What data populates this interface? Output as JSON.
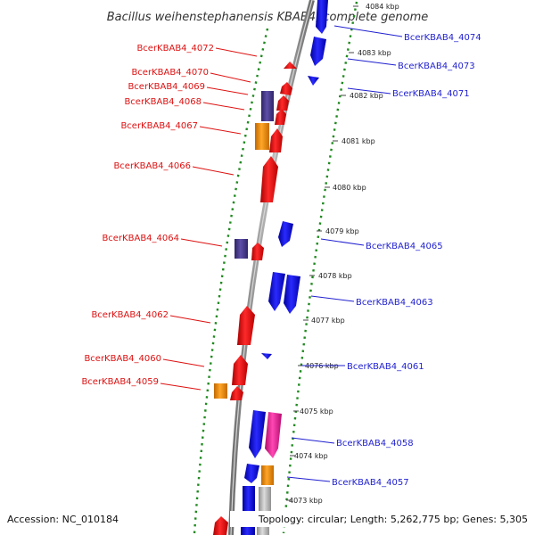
{
  "title": "Bacillus weihenstephanensis KBAB4, complete genome",
  "footer": {
    "accession": "Accession: NC_010184",
    "topology": "Topology: circular; Length: 5,262,775 bp; Genes: 5,305"
  },
  "colors": {
    "forward": "#ee1111",
    "reverse": "#1616ee",
    "purple": "#4a3c8c",
    "orange": "#f29010",
    "magenta": "#ee2a9a",
    "gray": "#b4b4b4",
    "backbone": "#8c8c8c",
    "dots": "#1f8a1f"
  },
  "ticks": [
    {
      "label": "4084 kbp"
    },
    {
      "label": "4083 kbp"
    },
    {
      "label": "4082 kbp"
    },
    {
      "label": "4081 kbp"
    },
    {
      "label": "4080 kbp"
    },
    {
      "label": "4079 kbp"
    },
    {
      "label": "4078 kbp"
    },
    {
      "label": "4077 kbp"
    },
    {
      "label": "4076 kbp"
    },
    {
      "label": "4075 kbp"
    },
    {
      "label": "4074 kbp"
    },
    {
      "label": "4073 kbp"
    }
  ],
  "left_labels": [
    {
      "text": "BcerKBAB4_4072"
    },
    {
      "text": "BcerKBAB4_4070"
    },
    {
      "text": "BcerKBAB4_4069"
    },
    {
      "text": "BcerKBAB4_4068"
    },
    {
      "text": "BcerKBAB4_4067"
    },
    {
      "text": "BcerKBAB4_4066"
    },
    {
      "text": "BcerKBAB4_4064"
    },
    {
      "text": "BcerKBAB4_4062"
    },
    {
      "text": "BcerKBAB4_4060"
    },
    {
      "text": "BcerKBAB4_4059"
    }
  ],
  "right_labels": [
    {
      "text": "BcerKBAB4_4074"
    },
    {
      "text": "BcerKBAB4_4073"
    },
    {
      "text": "BcerKBAB4_4071"
    },
    {
      "text": "BcerKBAB4_4065"
    },
    {
      "text": "BcerKBAB4_4063"
    },
    {
      "text": "BcerKBAB4_4061"
    },
    {
      "text": "BcerKBAB4_4058"
    },
    {
      "text": "BcerKBAB4_4057"
    }
  ]
}
